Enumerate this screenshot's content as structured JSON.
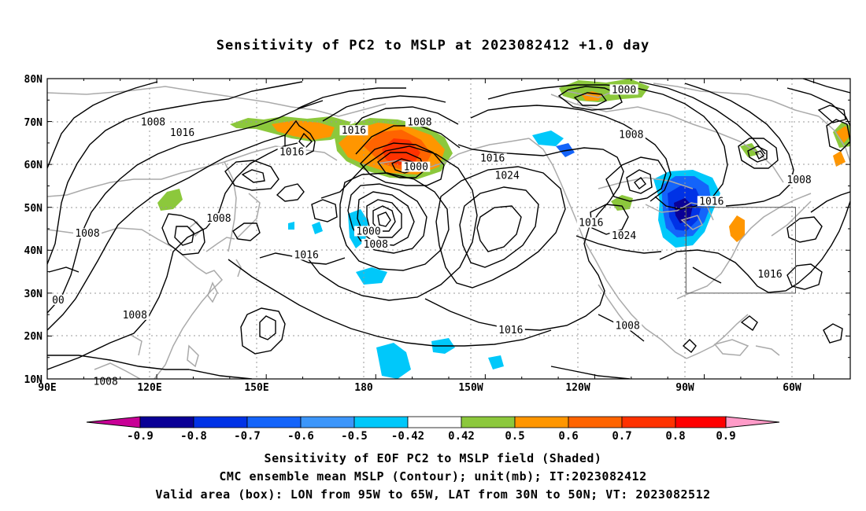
{
  "title": "Sensitivity of PC2 to MSLP at 2023082412 +1.0 day",
  "lat_labels": [
    "80N",
    "70N",
    "60N",
    "50N",
    "40N",
    "30N",
    "20N",
    "10N"
  ],
  "lon_labels": [
    "90E",
    "120E",
    "150E",
    "180",
    "150W",
    "120W",
    "90W",
    "60W"
  ],
  "contour_labels": [
    {
      "text": "1008",
      "lon": -241,
      "lat": 69.5
    },
    {
      "text": "1016",
      "lon": -233,
      "lat": 67
    },
    {
      "text": "1008",
      "lon": -259,
      "lat": 43.5
    },
    {
      "text": "1008",
      "lon": -223,
      "lat": 47
    },
    {
      "text": "1016",
      "lon": -203,
      "lat": 62.5
    },
    {
      "text": "1016",
      "lon": -186,
      "lat": 67.5
    },
    {
      "text": "1008",
      "lon": -168,
      "lat": 69.5
    },
    {
      "text": "1000",
      "lon": -169,
      "lat": 59
    },
    {
      "text": "1016",
      "lon": -148,
      "lat": 61
    },
    {
      "text": "1024",
      "lon": -144,
      "lat": 57
    },
    {
      "text": "1000",
      "lon": -182,
      "lat": 44
    },
    {
      "text": "1008",
      "lon": -180,
      "lat": 41
    },
    {
      "text": "1016",
      "lon": -199,
      "lat": 38.5
    },
    {
      "text": "1000",
      "lon": -112,
      "lat": 77
    },
    {
      "text": "1008",
      "lon": -110,
      "lat": 66.5
    },
    {
      "text": "1016",
      "lon": -121,
      "lat": 46
    },
    {
      "text": "1024",
      "lon": -112,
      "lat": 43
    },
    {
      "text": "1016",
      "lon": -88,
      "lat": 51
    },
    {
      "text": "1008",
      "lon": -64,
      "lat": 56
    },
    {
      "text": "1016",
      "lon": -72,
      "lat": 34
    },
    {
      "text": "1016",
      "lon": -143,
      "lat": 21
    },
    {
      "text": "1008",
      "lon": -111,
      "lat": 22
    },
    {
      "text": "1008",
      "lon": -246,
      "lat": 24.5
    },
    {
      "text": "1008",
      "lon": -254,
      "lat": 9
    },
    {
      "text": "00",
      "lon": -267,
      "lat": 28
    }
  ],
  "valid_box": {
    "lon_min": -95,
    "lon_max": -65,
    "lat_min": 30,
    "lat_max": 50
  },
  "colorbar": {
    "colors": [
      "#0a0096",
      "#0032e6",
      "#1464fa",
      "#3c96fa",
      "#00c8fa",
      "#ffffff",
      "#8cc83c",
      "#ff9600",
      "#ff6400",
      "#ff3200",
      "#ff0000"
    ],
    "low_end_color": "#c80096",
    "high_end_color": "#ff9bc8",
    "labels": [
      "-0.9",
      "-0.8",
      "-0.7",
      "-0.6",
      "-0.5",
      "-0.42",
      "0.42",
      "0.5",
      "0.6",
      "0.7",
      "0.8",
      "0.9"
    ]
  },
  "captions": [
    "Sensitivity of EOF PC2 to MSLP field (Shaded)",
    "CMC ensemble mean MSLP (Contour); unit(mb); IT:2023082412",
    "Valid area (box): LON from 95W to 65W, LAT from 30N to 50N; VT: 2023082512"
  ]
}
